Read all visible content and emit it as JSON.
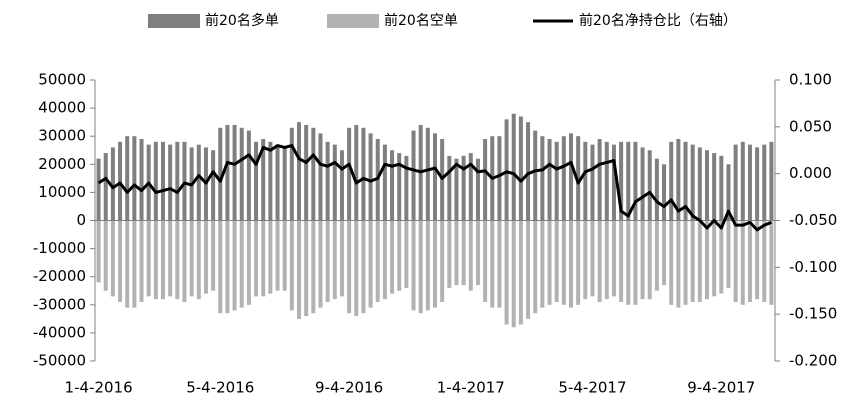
{
  "chart_data": {
    "type": "bar-line",
    "categories": [
      "1-4-2016",
      null,
      null,
      null,
      null,
      null,
      null,
      null,
      null,
      null,
      null,
      null,
      null,
      null,
      null,
      null,
      null,
      "5-4-2016",
      null,
      null,
      null,
      null,
      null,
      null,
      null,
      null,
      null,
      null,
      null,
      null,
      null,
      null,
      null,
      null,
      null,
      "9-4-2016",
      null,
      null,
      null,
      null,
      null,
      null,
      null,
      null,
      null,
      null,
      null,
      null,
      null,
      null,
      null,
      null,
      "1-4-2017",
      null,
      null,
      null,
      null,
      null,
      null,
      null,
      null,
      null,
      null,
      null,
      null,
      null,
      null,
      null,
      null,
      "5-4-2017",
      null,
      null,
      null,
      null,
      null,
      null,
      null,
      null,
      null,
      null,
      null,
      null,
      null,
      null,
      null,
      null,
      null,
      "9-4-2017",
      null,
      null,
      null,
      null,
      null,
      null,
      null
    ],
    "series": [
      {
        "name": "前20名多单",
        "color": "#7f7f7f",
        "values": [
          22000,
          24000,
          26000,
          28000,
          30000,
          30000,
          29000,
          27000,
          28000,
          28000,
          27000,
          28000,
          28000,
          26000,
          27000,
          26000,
          25000,
          33000,
          34000,
          34000,
          33000,
          32000,
          28000,
          29000,
          28000,
          27000,
          26000,
          33000,
          35000,
          34000,
          33000,
          31000,
          28000,
          27000,
          25000,
          33000,
          34000,
          33000,
          31000,
          29000,
          27000,
          25000,
          24000,
          23000,
          32000,
          34000,
          33000,
          31000,
          29000,
          23000,
          22000,
          23000,
          24000,
          22000,
          29000,
          30000,
          30000,
          36000,
          38000,
          37000,
          35000,
          32000,
          30000,
          29000,
          28000,
          30000,
          31000,
          30000,
          28000,
          27000,
          29000,
          28000,
          27000,
          28000,
          28000,
          28000,
          26000,
          25000,
          22000,
          20000,
          28000,
          29000,
          28000,
          27000,
          26000,
          25000,
          24000,
          23000,
          20000,
          27000,
          28000,
          27000,
          26000,
          27000,
          28000
        ]
      },
      {
        "name": "前20名空单",
        "color": "#b2b2b2",
        "values": [
          -22000,
          -25000,
          -27000,
          -29000,
          -31000,
          -31000,
          -29000,
          -27000,
          -28000,
          -28000,
          -27000,
          -28000,
          -29000,
          -27000,
          -28000,
          -26000,
          -25000,
          -33000,
          -33000,
          -32000,
          -31000,
          -30000,
          -27000,
          -27000,
          -26000,
          -25000,
          -25000,
          -32000,
          -35000,
          -34000,
          -33000,
          -31000,
          -29000,
          -28000,
          -27000,
          -33000,
          -34000,
          -33000,
          -31000,
          -29000,
          -28000,
          -26000,
          -25000,
          -24000,
          -32000,
          -33000,
          -32000,
          -31000,
          -29000,
          -24000,
          -23000,
          -23000,
          -25000,
          -23000,
          -29000,
          -31000,
          -31000,
          -37000,
          -38000,
          -37000,
          -35000,
          -33000,
          -31000,
          -30000,
          -29000,
          -30000,
          -31000,
          -30000,
          -28000,
          -27000,
          -29000,
          -28000,
          -27000,
          -29000,
          -30000,
          -30000,
          -28000,
          -28000,
          -25000,
          -23000,
          -30000,
          -31000,
          -30000,
          -29000,
          -29000,
          -28000,
          -27000,
          -26000,
          -24000,
          -29000,
          -30000,
          -29000,
          -28000,
          -29000,
          -30000
        ]
      },
      {
        "name": "前20名净持仓比（右轴）",
        "color": "#000000",
        "axis": "y2",
        "values": [
          -0.01,
          -0.005,
          -0.015,
          -0.01,
          -0.02,
          -0.012,
          -0.018,
          -0.01,
          -0.02,
          -0.018,
          -0.016,
          -0.02,
          -0.01,
          -0.012,
          -0.002,
          -0.01,
          0.002,
          -0.008,
          0.012,
          0.01,
          0.015,
          0.02,
          0.01,
          0.028,
          0.025,
          0.03,
          0.028,
          0.03,
          0.016,
          0.012,
          0.02,
          0.01,
          0.008,
          0.012,
          0.005,
          0.01,
          -0.01,
          -0.005,
          -0.008,
          -0.005,
          0.01,
          0.008,
          0.01,
          0.006,
          0.004,
          0.002,
          0.004,
          0.006,
          -0.005,
          0.002,
          0.01,
          0.005,
          0.01,
          0.002,
          0.003,
          -0.005,
          -0.002,
          0.002,
          0.0,
          -0.008,
          0.0,
          0.003,
          0.004,
          0.01,
          0.005,
          0.008,
          0.012,
          -0.01,
          0.002,
          0.005,
          0.01,
          0.012,
          0.014,
          -0.04,
          -0.045,
          -0.03,
          -0.025,
          -0.02,
          -0.03,
          -0.035,
          -0.028,
          -0.04,
          -0.035,
          -0.045,
          -0.05,
          -0.058,
          -0.05,
          -0.058,
          -0.04,
          -0.055,
          -0.055,
          -0.052,
          -0.06,
          -0.055,
          -0.052
        ]
      }
    ],
    "ylim": [
      -50000,
      50000
    ],
    "yticks": [
      -50000,
      -40000,
      -30000,
      -20000,
      -10000,
      0,
      10000,
      20000,
      30000,
      40000,
      50000
    ],
    "y2lim": [
      -0.2,
      0.1
    ],
    "y2ticks": [
      {
        "value": -0.2,
        "label": "-0.200"
      },
      {
        "value": -0.15,
        "label": "-0.150"
      },
      {
        "value": -0.1,
        "label": "-0.100"
      },
      {
        "value": -0.05,
        "label": "-0.050"
      },
      {
        "value": 0,
        "label": "0.000"
      },
      {
        "value": 0.05,
        "label": "0.050"
      },
      {
        "value": 0.1,
        "label": "0.100"
      }
    ],
    "legend": "top",
    "grid": false
  }
}
